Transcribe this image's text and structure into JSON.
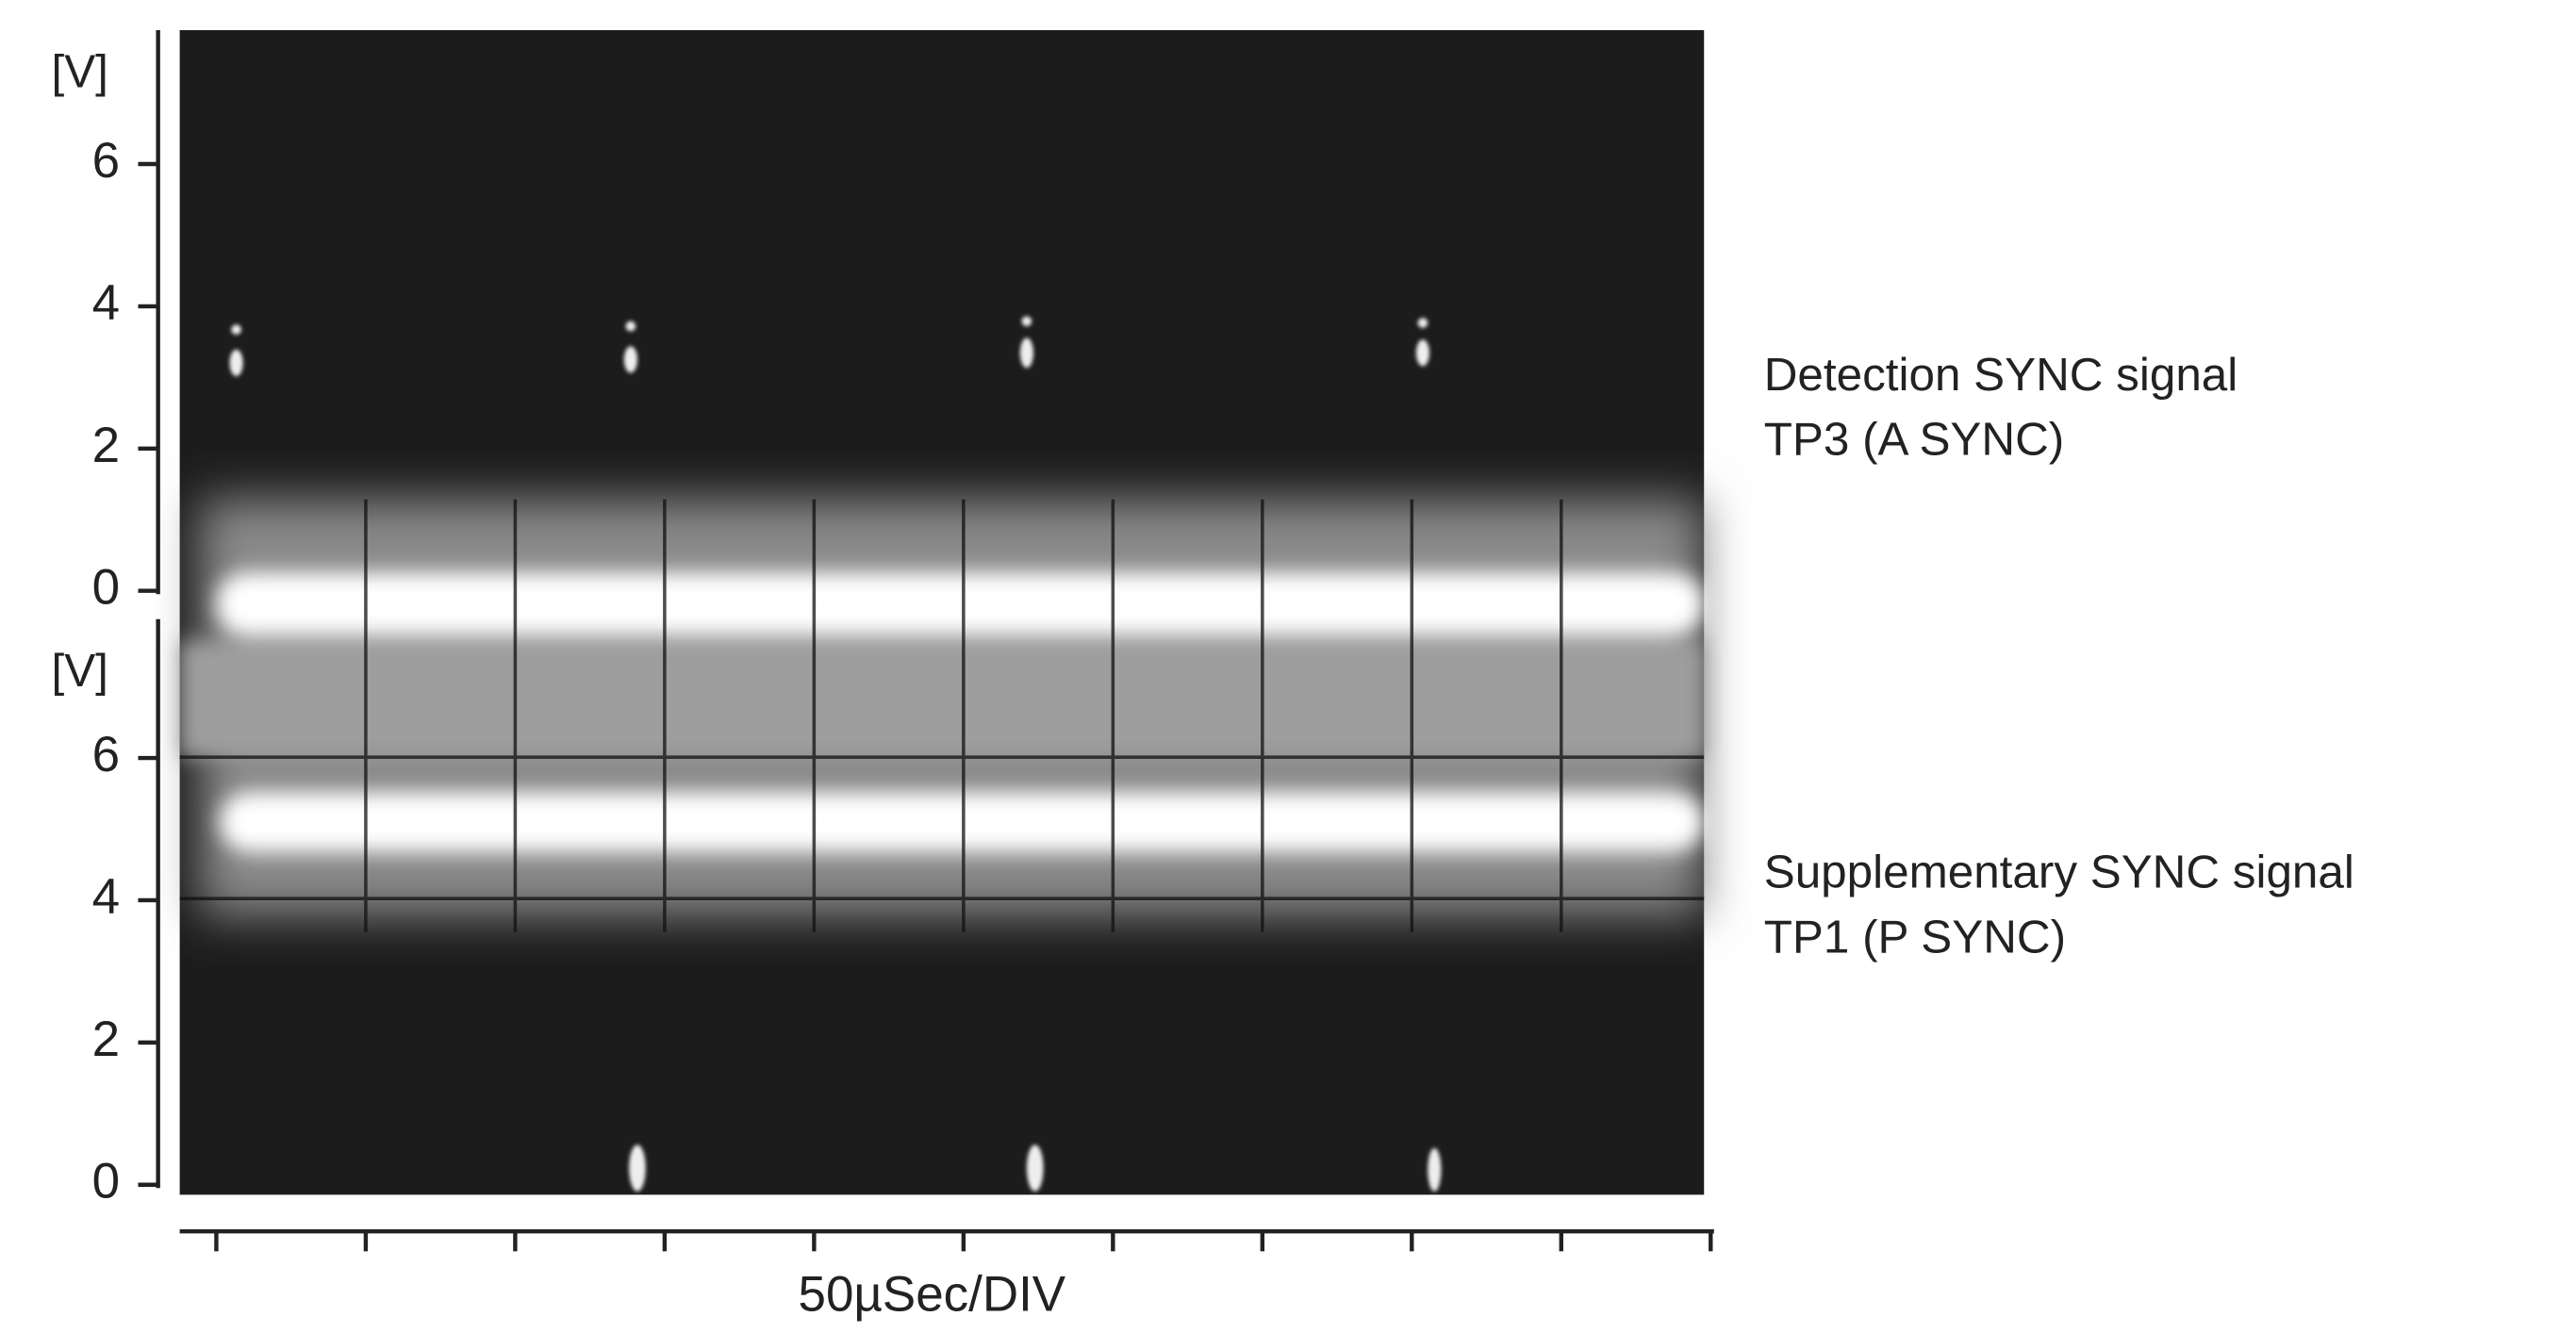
{
  "axes": [
    {
      "unit": "[V]",
      "ticks": [
        0,
        2,
        4,
        6
      ]
    },
    {
      "unit": "[V]",
      "ticks": [
        0,
        2,
        4,
        6
      ]
    }
  ],
  "x_axis": {
    "label": "50µSec/DIV"
  },
  "signals": [
    {
      "name": "Detection SYNC signal",
      "test_point": "TP3 (A SYNC)"
    },
    {
      "name": "Supplementary SYNC signal",
      "test_point": "TP1 (P SYNC)"
    }
  ]
}
